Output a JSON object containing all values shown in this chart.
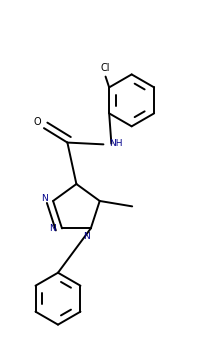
{
  "background_color": "#ffffff",
  "line_color": "#000000",
  "n_color": "#00008b",
  "line_width": 1.4,
  "dbo": 0.018,
  "figsize": [
    2.06,
    3.63
  ],
  "dpi": 100,
  "xlim": [
    0.0,
    1.0
  ],
  "ylim": [
    0.0,
    1.0
  ]
}
